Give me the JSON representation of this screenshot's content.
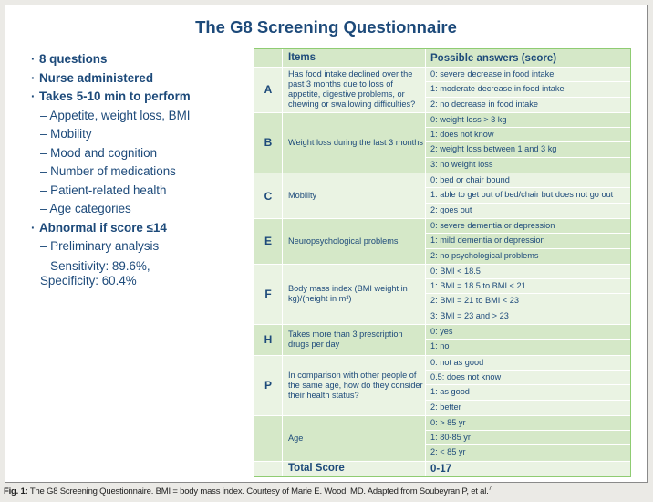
{
  "title": "The G8 Screening Questionnaire",
  "bullets": [
    {
      "text": "8 questions",
      "level": 1
    },
    {
      "text": "Nurse administered",
      "level": 1
    },
    {
      "text": "Takes 5-10 min to perform",
      "level": 1
    },
    {
      "text": "– Appetite, weight loss, BMI",
      "level": 2
    },
    {
      "text": "– Mobility",
      "level": 2
    },
    {
      "text": "– Mood and cognition",
      "level": 2
    },
    {
      "text": "– Number of medications",
      "level": 2
    },
    {
      "text": "– Patient-related health",
      "level": 2
    },
    {
      "text": "– Age categories",
      "level": 2
    },
    {
      "text": "Abnormal if score ≤14",
      "level": 1
    },
    {
      "text": "– Preliminary analysis",
      "level": 2
    },
    {
      "text": "– Sensitivity: 89.6%, Specificity: 60.4%",
      "level": 2
    }
  ],
  "table": {
    "headers": [
      "",
      "Items",
      "Possible answers (score)"
    ],
    "rows": [
      {
        "letter": "A",
        "item": "Has food intake declined over the past 3 months due to loss of appetite, digestive problems, or chewing or swallowing difficulties?",
        "answers": [
          "0: severe decrease in food intake",
          "1: moderate decrease in food intake",
          "2: no decrease in food intake"
        ]
      },
      {
        "letter": "B",
        "item": "Weight loss during the last 3 months",
        "answers": [
          "0: weight loss > 3 kg",
          "1: does not know",
          "2: weight loss between 1 and 3 kg",
          "3: no weight loss"
        ]
      },
      {
        "letter": "C",
        "item": "Mobility",
        "answers": [
          "0: bed or chair bound",
          "1: able to get out of bed/chair but does not go out",
          "2: goes out"
        ]
      },
      {
        "letter": "E",
        "item": "Neuropsychological problems",
        "answers": [
          "0: severe dementia or depression",
          "1: mild dementia or depression",
          "2: no psychological problems"
        ]
      },
      {
        "letter": "F",
        "item": "Body mass index (BMI weight in kg)/(height in m²)",
        "answers": [
          "0: BMI < 18.5",
          "1: BMI = 18.5 to BMI < 21",
          "2: BMI = 21 to BMI < 23",
          "3: BMI = 23 and > 23"
        ]
      },
      {
        "letter": "H",
        "item": "Takes more than 3 prescription drugs per day",
        "answers": [
          "0: yes",
          "1: no"
        ]
      },
      {
        "letter": "P",
        "item": "In comparison with other people of the same age, how do they consider their health status?",
        "answers": [
          "0: not as good",
          "0.5: does not know",
          "1: as good",
          "2: better"
        ]
      },
      {
        "letter": "",
        "item": "Age",
        "answers": [
          "0: > 85 yr",
          "1: 80-85 yr",
          "2: < 85 yr"
        ]
      }
    ],
    "total_label": "Total Score",
    "total_value": "0-17"
  },
  "caption": {
    "label": "Fig. 1:",
    "text": " The G8 Screening Questionnaire. BMI = body mass index. Courtesy of Marie E. Wood, MD. Adapted from Soubeyran P, et al.",
    "ref": "7"
  },
  "colors": {
    "text": "#1d4a7a",
    "row_dark": "#d5e8c8",
    "row_light": "#eaf3e3",
    "border": "#8fcc72"
  }
}
